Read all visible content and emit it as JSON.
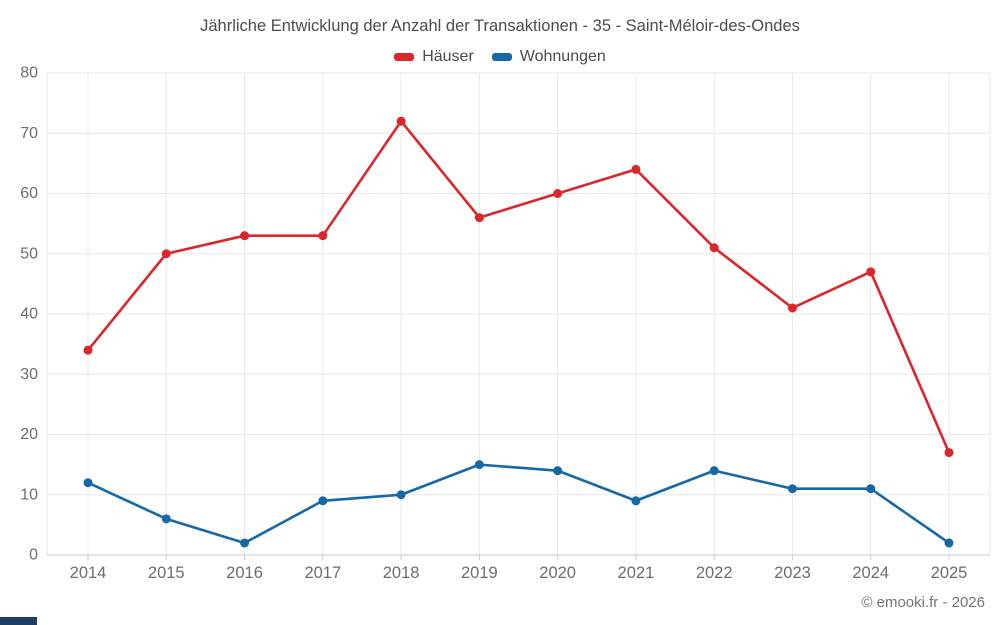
{
  "title": "Jährliche Entwicklung der Anzahl der Transaktionen - 35 - Saint-Méloir-des-Ondes",
  "footer": "© emooki.fr - 2026",
  "colors": {
    "background": "#ffffff",
    "grid": "#e8e8e8",
    "axis": "#cccccc",
    "title_text": "#4c4c4c",
    "tick_text": "#6e6e6e",
    "footer_text": "#757575",
    "brand_bar": "#1f3e62",
    "haeuser": "#dc262b",
    "wohnungen": "#1669a8"
  },
  "chart_data": {
    "type": "line",
    "title": "Jährliche Entwicklung der Anzahl der Transaktionen - 35 - Saint-Méloir-des-Ondes",
    "categories": [
      "2014",
      "2015",
      "2016",
      "2017",
      "2018",
      "2019",
      "2020",
      "2021",
      "2022",
      "2023",
      "2024",
      "2025"
    ],
    "series": [
      {
        "name": "Häuser",
        "color": "#dc262b",
        "values": [
          34,
          50,
          53,
          53,
          72,
          56,
          60,
          64,
          51,
          41,
          47,
          17
        ]
      },
      {
        "name": "Wohnungen",
        "color": "#1669a8",
        "values": [
          12,
          6,
          2,
          9,
          10,
          15,
          14,
          9,
          14,
          11,
          11,
          2
        ]
      }
    ],
    "xlabel": "",
    "ylabel": "",
    "ylim": [
      0,
      80
    ],
    "yticks": [
      0,
      10,
      20,
      30,
      40,
      50,
      60,
      70,
      80
    ],
    "grid": true,
    "legend_position": "top",
    "marker": "circle"
  }
}
